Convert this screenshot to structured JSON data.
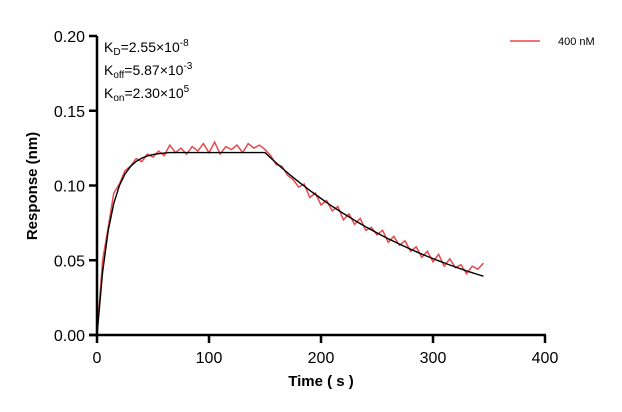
{
  "chart_data": {
    "type": "line",
    "title": "",
    "xlabel": "Time ( s )",
    "ylabel": "Response (nm)",
    "xlim": [
      0,
      400
    ],
    "ylim": [
      0,
      0.2
    ],
    "xticks": [
      "0",
      "100",
      "200",
      "300",
      "400"
    ],
    "yticks": [
      "0.00",
      "0.05",
      "0.10",
      "0.15",
      "0.20"
    ],
    "grid": false,
    "legend_position": "top-right",
    "annotations": [
      {
        "base": "K",
        "sub": "D",
        "text": "=2.55×10",
        "sup": "-8"
      },
      {
        "base": "K",
        "sub": "off",
        "text": "=5.87×10",
        "sup": "-3"
      },
      {
        "base": "K",
        "sub": "on",
        "text": "=2.30×10",
        "sup": "5"
      }
    ],
    "x": [
      0,
      5,
      10,
      15,
      20,
      25,
      30,
      35,
      40,
      45,
      50,
      55,
      60,
      65,
      70,
      75,
      80,
      85,
      90,
      95,
      100,
      105,
      110,
      115,
      120,
      125,
      130,
      135,
      140,
      145,
      150,
      155,
      160,
      165,
      170,
      175,
      180,
      185,
      190,
      195,
      200,
      205,
      210,
      215,
      220,
      225,
      230,
      235,
      240,
      245,
      250,
      255,
      260,
      265,
      270,
      275,
      280,
      285,
      290,
      295,
      300,
      305,
      310,
      315,
      320,
      325,
      330,
      335,
      340,
      345
    ],
    "series": [
      {
        "name": "400 nM",
        "color": "#e8474b",
        "role": "measured",
        "values": [
          0.0,
          0.05,
          0.072,
          0.095,
          0.101,
          0.11,
          0.113,
          0.118,
          0.116,
          0.121,
          0.119,
          0.123,
          0.12,
          0.127,
          0.122,
          0.125,
          0.121,
          0.126,
          0.123,
          0.128,
          0.122,
          0.129,
          0.121,
          0.126,
          0.124,
          0.127,
          0.122,
          0.128,
          0.125,
          0.127,
          0.124,
          0.12,
          0.114,
          0.113,
          0.107,
          0.104,
          0.099,
          0.101,
          0.092,
          0.095,
          0.087,
          0.09,
          0.083,
          0.086,
          0.077,
          0.081,
          0.074,
          0.078,
          0.07,
          0.072,
          0.067,
          0.07,
          0.062,
          0.066,
          0.06,
          0.063,
          0.056,
          0.059,
          0.052,
          0.056,
          0.049,
          0.054,
          0.046,
          0.051,
          0.045,
          0.047,
          0.041,
          0.046,
          0.044,
          0.048
        ]
      },
      {
        "color": "#000000",
        "role": "fit",
        "values": [
          0.0,
          0.0421,
          0.0698,
          0.088,
          0.0999,
          0.1077,
          0.1128,
          0.1161,
          0.1183,
          0.1198,
          0.1207,
          0.1213,
          0.1217,
          0.122,
          0.122,
          0.122,
          0.122,
          0.122,
          0.122,
          0.122,
          0.122,
          0.122,
          0.122,
          0.122,
          0.122,
          0.122,
          0.122,
          0.122,
          0.122,
          0.122,
          0.122,
          0.1185,
          0.1151,
          0.1118,
          0.1086,
          0.1055,
          0.1025,
          0.0996,
          0.0967,
          0.094,
          0.0913,
          0.0887,
          0.0861,
          0.0837,
          0.0813,
          0.079,
          0.0767,
          0.0745,
          0.0724,
          0.0703,
          0.0683,
          0.0663,
          0.0644,
          0.0626,
          0.0608,
          0.0591,
          0.0574,
          0.0557,
          0.0541,
          0.0526,
          0.0511,
          0.0496,
          0.0482,
          0.0468,
          0.0455,
          0.0442,
          0.0429,
          0.0417,
          0.0405,
          0.0393
        ]
      }
    ]
  }
}
